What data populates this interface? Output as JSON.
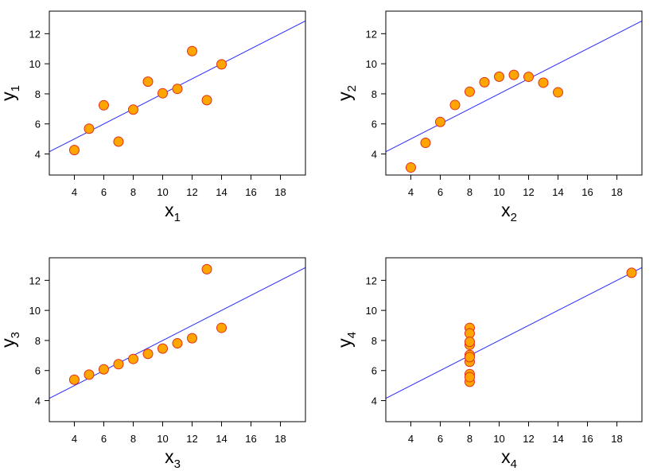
{
  "chart_data": [
    {
      "type": "scatter",
      "xlabel": "x",
      "xlabel_sub": "1",
      "ylabel": "y",
      "ylabel_sub": "1",
      "xlim": [
        2.3,
        19.7
      ],
      "ylim": [
        2.6,
        13.5
      ],
      "xticks": [
        "4",
        "6",
        "8",
        "10",
        "12",
        "14",
        "16",
        "18"
      ],
      "yticks": [
        "4",
        "6",
        "8",
        "10",
        "12"
      ],
      "fit_line": {
        "intercept": 3.0,
        "slope": 0.5
      },
      "points": [
        [
          10,
          8.04
        ],
        [
          8,
          6.95
        ],
        [
          13,
          7.58
        ],
        [
          9,
          8.81
        ],
        [
          11,
          8.33
        ],
        [
          14,
          9.96
        ],
        [
          6,
          7.24
        ],
        [
          4,
          4.26
        ],
        [
          12,
          10.84
        ],
        [
          7,
          4.82
        ],
        [
          5,
          5.68
        ]
      ]
    },
    {
      "type": "scatter",
      "xlabel": "x",
      "xlabel_sub": "2",
      "ylabel": "y",
      "ylabel_sub": "2",
      "xlim": [
        2.3,
        19.7
      ],
      "ylim": [
        2.6,
        13.5
      ],
      "xticks": [
        "4",
        "6",
        "8",
        "10",
        "12",
        "14",
        "16",
        "18"
      ],
      "yticks": [
        "4",
        "6",
        "8",
        "10",
        "12"
      ],
      "fit_line": {
        "intercept": 3.0,
        "slope": 0.5
      },
      "points": [
        [
          10,
          9.14
        ],
        [
          8,
          8.14
        ],
        [
          13,
          8.74
        ],
        [
          9,
          8.77
        ],
        [
          11,
          9.26
        ],
        [
          14,
          8.1
        ],
        [
          6,
          6.13
        ],
        [
          4,
          3.1
        ],
        [
          12,
          9.13
        ],
        [
          7,
          7.26
        ],
        [
          5,
          4.74
        ]
      ]
    },
    {
      "type": "scatter",
      "xlabel": "x",
      "xlabel_sub": "3",
      "ylabel": "y",
      "ylabel_sub": "3",
      "xlim": [
        2.3,
        19.7
      ],
      "ylim": [
        2.6,
        13.5
      ],
      "xticks": [
        "4",
        "6",
        "8",
        "10",
        "12",
        "14",
        "16",
        "18"
      ],
      "yticks": [
        "4",
        "6",
        "8",
        "10",
        "12"
      ],
      "fit_line": {
        "intercept": 3.0,
        "slope": 0.5
      },
      "points": [
        [
          10,
          7.46
        ],
        [
          8,
          6.77
        ],
        [
          13,
          12.74
        ],
        [
          9,
          7.11
        ],
        [
          11,
          7.81
        ],
        [
          14,
          8.84
        ],
        [
          6,
          6.08
        ],
        [
          4,
          5.39
        ],
        [
          12,
          8.15
        ],
        [
          7,
          6.42
        ],
        [
          5,
          5.73
        ]
      ]
    },
    {
      "type": "scatter",
      "xlabel": "x",
      "xlabel_sub": "4",
      "ylabel": "y",
      "ylabel_sub": "4",
      "xlim": [
        2.3,
        19.7
      ],
      "ylim": [
        2.6,
        13.5
      ],
      "xticks": [
        "4",
        "6",
        "8",
        "10",
        "12",
        "14",
        "16",
        "18"
      ],
      "yticks": [
        "4",
        "6",
        "8",
        "10",
        "12"
      ],
      "fit_line": {
        "intercept": 3.0,
        "slope": 0.5
      },
      "points": [
        [
          8,
          6.58
        ],
        [
          8,
          5.76
        ],
        [
          8,
          7.71
        ],
        [
          8,
          8.84
        ],
        [
          8,
          8.47
        ],
        [
          8,
          7.04
        ],
        [
          8,
          5.25
        ],
        [
          19,
          12.5
        ],
        [
          8,
          5.56
        ],
        [
          8,
          7.91
        ],
        [
          8,
          6.89
        ]
      ]
    }
  ],
  "colors": {
    "marker_fill": "#FFA500",
    "marker_stroke": "#E0301E",
    "fit_line": "#2B2BFF",
    "frame": "#000000"
  }
}
